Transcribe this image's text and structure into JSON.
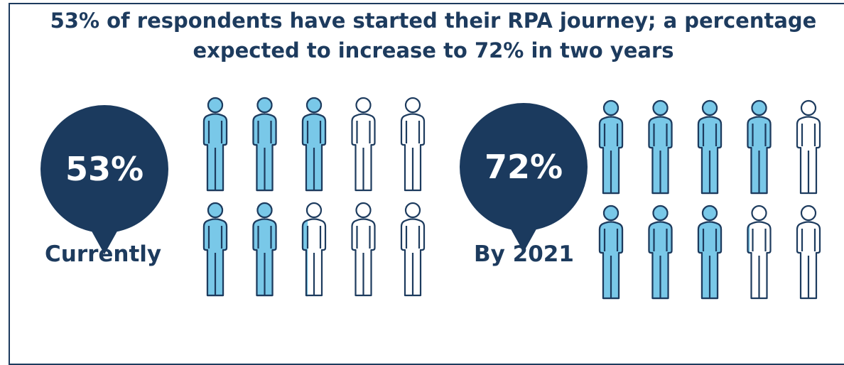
{
  "title": {
    "line1": "53% of respondents have started their RPA journey; a percentage",
    "line2": "expected to increase to 72% in two years"
  },
  "colors": {
    "navy": "#1b3a5e",
    "filled": "#79c8e8",
    "outline": "#1d3b5e",
    "empty": "#ffffff"
  },
  "icon": "person-icon",
  "chart_data": {
    "type": "pictograph",
    "icons_per_group": 10,
    "groups": [
      {
        "label": "Currently",
        "value_label": "53%",
        "value": 53
      },
      {
        "label": "By 2021",
        "value_label": "72%",
        "value": 72
      }
    ]
  }
}
